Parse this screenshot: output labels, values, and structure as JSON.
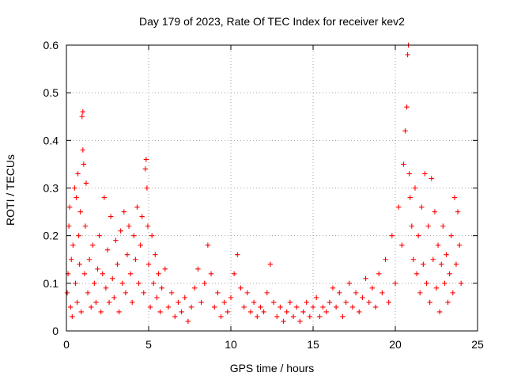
{
  "chart_data": {
    "type": "scatter",
    "title": "Day 179 of 2023, Rate Of TEC Index for receiver kev2",
    "xlabel": "GPS time / hours",
    "ylabel": "ROTI / TECUs",
    "xlim": [
      0,
      25
    ],
    "ylim": [
      0,
      0.6
    ],
    "xticks": [
      "0",
      "5",
      "10",
      "15",
      "20",
      "25"
    ],
    "yticks": [
      "0",
      "0.1",
      "0.2",
      "0.3",
      "0.4",
      "0.5",
      "0.6"
    ],
    "grid": true,
    "marker": "plus",
    "color": "#ff0000",
    "series": [
      {
        "name": "ROTI",
        "points": [
          [
            0.05,
            0.08
          ],
          [
            0.1,
            0.12
          ],
          [
            0.15,
            0.22
          ],
          [
            0.2,
            0.26
          ],
          [
            0.25,
            0.05
          ],
          [
            0.3,
            0.15
          ],
          [
            0.35,
            0.03
          ],
          [
            0.4,
            0.18
          ],
          [
            0.5,
            0.3
          ],
          [
            0.55,
            0.1
          ],
          [
            0.6,
            0.28
          ],
          [
            0.65,
            0.06
          ],
          [
            0.7,
            0.33
          ],
          [
            0.75,
            0.2
          ],
          [
            0.8,
            0.14
          ],
          [
            0.85,
            0.25
          ],
          [
            0.9,
            0.04
          ],
          [
            0.95,
            0.45
          ],
          [
            1.0,
            0.46
          ],
          [
            1.0,
            0.38
          ],
          [
            1.05,
            0.35
          ],
          [
            1.1,
            0.12
          ],
          [
            1.15,
            0.22
          ],
          [
            1.2,
            0.31
          ],
          [
            1.3,
            0.08
          ],
          [
            1.4,
            0.15
          ],
          [
            1.5,
            0.05
          ],
          [
            1.6,
            0.18
          ],
          [
            1.7,
            0.1
          ],
          [
            1.8,
            0.06
          ],
          [
            1.9,
            0.13
          ],
          [
            2.0,
            0.2
          ],
          [
            2.1,
            0.04
          ],
          [
            2.2,
            0.12
          ],
          [
            2.3,
            0.28
          ],
          [
            2.4,
            0.09
          ],
          [
            2.5,
            0.17
          ],
          [
            2.6,
            0.06
          ],
          [
            2.7,
            0.24
          ],
          [
            2.8,
            0.11
          ],
          [
            2.9,
            0.07
          ],
          [
            3.0,
            0.19
          ],
          [
            3.1,
            0.14
          ],
          [
            3.2,
            0.04
          ],
          [
            3.3,
            0.21
          ],
          [
            3.4,
            0.1
          ],
          [
            3.5,
            0.25
          ],
          [
            3.6,
            0.08
          ],
          [
            3.7,
            0.16
          ],
          [
            3.8,
            0.22
          ],
          [
            3.9,
            0.12
          ],
          [
            4.0,
            0.06
          ],
          [
            4.1,
            0.2
          ],
          [
            4.2,
            0.15
          ],
          [
            4.3,
            0.26
          ],
          [
            4.4,
            0.1
          ],
          [
            4.5,
            0.18
          ],
          [
            4.6,
            0.24
          ],
          [
            4.7,
            0.08
          ],
          [
            4.8,
            0.34
          ],
          [
            4.85,
            0.36
          ],
          [
            4.9,
            0.3
          ],
          [
            4.95,
            0.22
          ],
          [
            5.0,
            0.14
          ],
          [
            5.1,
            0.05
          ],
          [
            5.2,
            0.2
          ],
          [
            5.3,
            0.1
          ],
          [
            5.4,
            0.16
          ],
          [
            5.5,
            0.07
          ],
          [
            5.6,
            0.12
          ],
          [
            5.7,
            0.04
          ],
          [
            5.8,
            0.09
          ],
          [
            6.0,
            0.13
          ],
          [
            6.2,
            0.05
          ],
          [
            6.4,
            0.08
          ],
          [
            6.6,
            0.03
          ],
          [
            6.8,
            0.06
          ],
          [
            7.0,
            0.04
          ],
          [
            7.2,
            0.07
          ],
          [
            7.4,
            0.02
          ],
          [
            7.6,
            0.05
          ],
          [
            7.8,
            0.09
          ],
          [
            8.0,
            0.13
          ],
          [
            8.2,
            0.06
          ],
          [
            8.4,
            0.1
          ],
          [
            8.6,
            0.18
          ],
          [
            8.8,
            0.12
          ],
          [
            9.0,
            0.05
          ],
          [
            9.2,
            0.08
          ],
          [
            9.4,
            0.03
          ],
          [
            9.6,
            0.06
          ],
          [
            9.8,
            0.04
          ],
          [
            10.0,
            0.07
          ],
          [
            10.2,
            0.12
          ],
          [
            10.4,
            0.16
          ],
          [
            10.6,
            0.09
          ],
          [
            10.8,
            0.05
          ],
          [
            11.0,
            0.08
          ],
          [
            11.2,
            0.04
          ],
          [
            11.4,
            0.06
          ],
          [
            11.6,
            0.03
          ],
          [
            11.8,
            0.05
          ],
          [
            12.0,
            0.04
          ],
          [
            12.2,
            0.08
          ],
          [
            12.4,
            0.14
          ],
          [
            12.6,
            0.06
          ],
          [
            12.8,
            0.03
          ],
          [
            13.0,
            0.05
          ],
          [
            13.2,
            0.02
          ],
          [
            13.4,
            0.04
          ],
          [
            13.6,
            0.06
          ],
          [
            13.8,
            0.03
          ],
          [
            14.0,
            0.05
          ],
          [
            14.2,
            0.02
          ],
          [
            14.4,
            0.04
          ],
          [
            14.6,
            0.06
          ],
          [
            14.8,
            0.03
          ],
          [
            15.0,
            0.05
          ],
          [
            15.2,
            0.07
          ],
          [
            15.4,
            0.03
          ],
          [
            15.6,
            0.05
          ],
          [
            15.8,
            0.04
          ],
          [
            16.0,
            0.06
          ],
          [
            16.2,
            0.09
          ],
          [
            16.4,
            0.05
          ],
          [
            16.6,
            0.08
          ],
          [
            16.8,
            0.03
          ],
          [
            17.0,
            0.06
          ],
          [
            17.2,
            0.1
          ],
          [
            17.4,
            0.05
          ],
          [
            17.6,
            0.08
          ],
          [
            17.8,
            0.04
          ],
          [
            18.0,
            0.07
          ],
          [
            18.2,
            0.11
          ],
          [
            18.4,
            0.06
          ],
          [
            18.6,
            0.09
          ],
          [
            18.8,
            0.05
          ],
          [
            19.0,
            0.12
          ],
          [
            19.2,
            0.08
          ],
          [
            19.4,
            0.15
          ],
          [
            19.6,
            0.06
          ],
          [
            19.8,
            0.2
          ],
          [
            20.0,
            0.1
          ],
          [
            20.2,
            0.26
          ],
          [
            20.4,
            0.18
          ],
          [
            20.5,
            0.35
          ],
          [
            20.6,
            0.42
          ],
          [
            20.7,
            0.47
          ],
          [
            20.75,
            0.58
          ],
          [
            20.8,
            0.6
          ],
          [
            20.85,
            0.33
          ],
          [
            20.9,
            0.28
          ],
          [
            21.0,
            0.22
          ],
          [
            21.1,
            0.15
          ],
          [
            21.2,
            0.3
          ],
          [
            21.3,
            0.12
          ],
          [
            21.4,
            0.2
          ],
          [
            21.5,
            0.08
          ],
          [
            21.6,
            0.26
          ],
          [
            21.7,
            0.14
          ],
          [
            21.8,
            0.33
          ],
          [
            21.9,
            0.1
          ],
          [
            22.0,
            0.22
          ],
          [
            22.1,
            0.06
          ],
          [
            22.2,
            0.32
          ],
          [
            22.3,
            0.15
          ],
          [
            22.4,
            0.25
          ],
          [
            22.5,
            0.09
          ],
          [
            22.6,
            0.18
          ],
          [
            22.7,
            0.04
          ],
          [
            22.8,
            0.14
          ],
          [
            22.9,
            0.22
          ],
          [
            23.0,
            0.1
          ],
          [
            23.1,
            0.16
          ],
          [
            23.2,
            0.06
          ],
          [
            23.3,
            0.12
          ],
          [
            23.4,
            0.2
          ],
          [
            23.5,
            0.08
          ],
          [
            23.6,
            0.28
          ],
          [
            23.7,
            0.14
          ],
          [
            23.8,
            0.25
          ],
          [
            23.9,
            0.18
          ],
          [
            24.0,
            0.1
          ]
        ]
      }
    ]
  }
}
